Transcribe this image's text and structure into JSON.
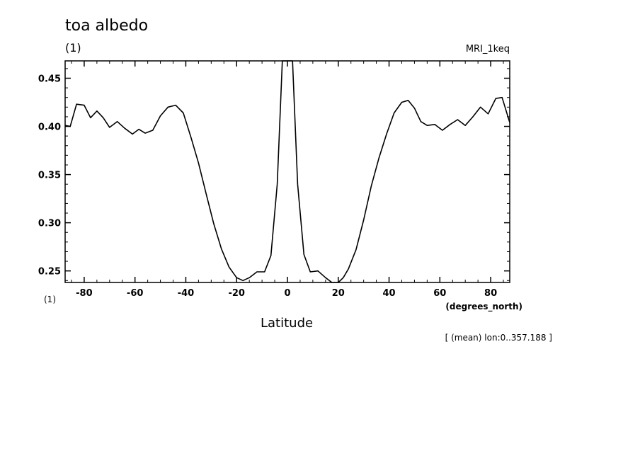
{
  "title": "toa albedo",
  "units": "(1)",
  "model": "MRI_1keq",
  "y_units": "(1)",
  "x_units": "(degrees_north)",
  "xlabel": "Latitude",
  "note": "[ (mean) lon:0..357.188 ]",
  "chart_data": {
    "type": "line",
    "title": "toa albedo",
    "xlabel": "Latitude",
    "ylabel": "(1)",
    "xlim": [
      -87.5,
      87.5
    ],
    "ylim": [
      0.238,
      0.468
    ],
    "xticks": [
      -80,
      -60,
      -40,
      -20,
      0,
      20,
      40,
      60,
      80
    ],
    "xtick_labels": [
      "-80",
      "-60",
      "-40",
      "-20",
      "0",
      "20",
      "40",
      "60",
      "80"
    ],
    "yticks": [
      0.25,
      0.3,
      0.35,
      0.4,
      0.45
    ],
    "ytick_labels": [
      "0.25",
      "0.30",
      "0.35",
      "0.40",
      "0.45"
    ],
    "grid": false,
    "color": "#000000",
    "series": [
      {
        "x": [
          -87.5,
          -85.5,
          -83,
          -80,
          -77.5,
          -75,
          -72.5,
          -70,
          -67,
          -64,
          -61,
          -58.5,
          -56,
          -53,
          -50,
          -47,
          -44,
          -41,
          -38,
          -35,
          -32,
          -29,
          -26,
          -23,
          -20,
          -17.5,
          -15,
          -12,
          -9,
          -6.5,
          -4,
          -2,
          0,
          2,
          4,
          6.5,
          9,
          12,
          15,
          17.5,
          20,
          22,
          24,
          27,
          30,
          33,
          36,
          39,
          42,
          45,
          47.5,
          50,
          52.5,
          55,
          58,
          61,
          64,
          67,
          70,
          73,
          76,
          79,
          82,
          84.5,
          87.5
        ],
        "y": [
          0.401,
          0.4,
          0.423,
          0.422,
          0.409,
          0.416,
          0.409,
          0.399,
          0.405,
          0.398,
          0.392,
          0.397,
          0.393,
          0.396,
          0.411,
          0.42,
          0.422,
          0.414,
          0.389,
          0.362,
          0.33,
          0.299,
          0.273,
          0.254,
          0.243,
          0.24,
          0.243,
          0.249,
          0.249,
          0.266,
          0.34,
          0.468,
          0.468,
          0.468,
          0.34,
          0.267,
          0.249,
          0.25,
          0.243,
          0.238,
          0.238,
          0.243,
          0.252,
          0.272,
          0.303,
          0.338,
          0.367,
          0.392,
          0.414,
          0.425,
          0.427,
          0.419,
          0.405,
          0.401,
          0.402,
          0.396,
          0.402,
          0.407,
          0.401,
          0.41,
          0.42,
          0.413,
          0.429,
          0.43,
          0.404
        ]
      }
    ]
  }
}
